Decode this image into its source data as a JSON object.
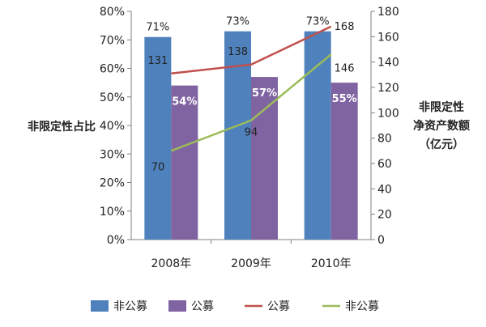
{
  "chart_data": {
    "type": "bar",
    "categories": [
      "2008年",
      "2009年",
      "2010年"
    ],
    "left_axis": {
      "label": "非限定性占比",
      "ylim": [
        0,
        80
      ],
      "tick_labels": [
        "0%",
        "10%",
        "20%",
        "30%",
        "40%",
        "50%",
        "60%",
        "70%",
        "80%"
      ]
    },
    "right_axis": {
      "label_lines": [
        "非限定性",
        "净资产数额",
        "（亿元）"
      ],
      "ylim": [
        0,
        180
      ],
      "tick_labels": [
        "0",
        "20",
        "40",
        "60",
        "80",
        "100",
        "120",
        "140",
        "160",
        "180"
      ]
    },
    "bar_series": [
      {
        "name": "非公募",
        "color": "#4f81bd",
        "values": [
          71,
          73,
          73
        ],
        "labels": [
          "71%",
          "73%",
          "73%"
        ]
      },
      {
        "name": "公募",
        "color": "#8064a2",
        "values": [
          54,
          57,
          55
        ],
        "labels": [
          "54%",
          "57%",
          "55%"
        ]
      }
    ],
    "line_series": [
      {
        "name": "公募",
        "color": "#c0504d",
        "values": [
          131,
          138,
          168
        ],
        "labels": [
          "131",
          "138",
          "168"
        ]
      },
      {
        "name": "非公募",
        "color": "#9bbb59",
        "values": [
          70,
          94,
          146
        ],
        "labels": [
          "70",
          "94",
          "146"
        ]
      }
    ],
    "legend": {
      "position": "bottom",
      "items": [
        {
          "name": "非公募",
          "kind": "bar",
          "color": "#4f81bd"
        },
        {
          "name": "公募",
          "kind": "bar",
          "color": "#8064a2"
        },
        {
          "name": "公募",
          "kind": "line",
          "color": "#c0504d"
        },
        {
          "name": "非公募",
          "kind": "line",
          "color": "#9bbb59"
        }
      ]
    },
    "grid": false
  }
}
